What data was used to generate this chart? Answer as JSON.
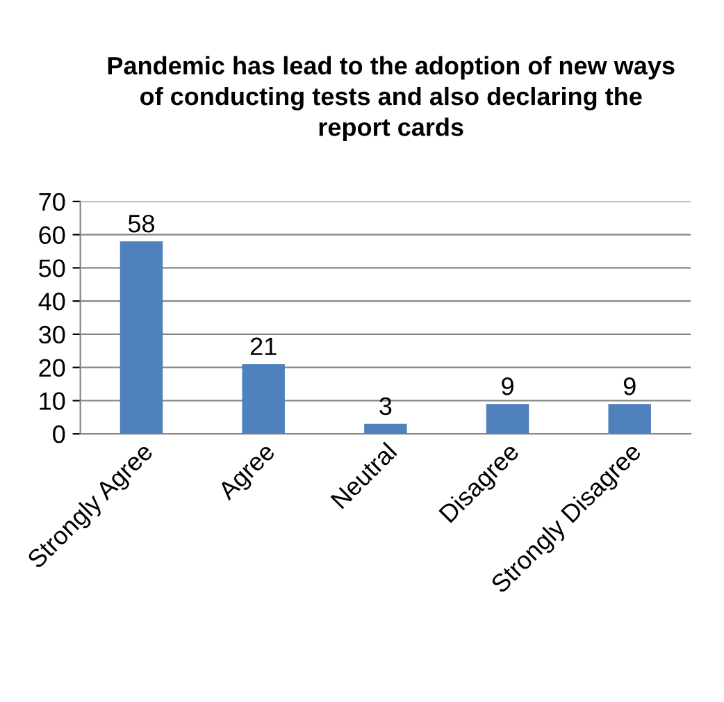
{
  "chart_data": {
    "type": "bar",
    "title": "Pandemic has lead to the adoption of new ways of conducting tests and also declaring the report cards",
    "categories": [
      "Strongly Agree",
      "Agree",
      "Neutral",
      "Disagree",
      "Strongly Disagree"
    ],
    "values": [
      58,
      21,
      3,
      9,
      9
    ],
    "color": "#4f81bd",
    "ylim": [
      0,
      70
    ],
    "yticks": [
      0,
      10,
      20,
      30,
      40,
      50,
      60,
      70
    ],
    "grid": "y",
    "data_labels": true
  }
}
